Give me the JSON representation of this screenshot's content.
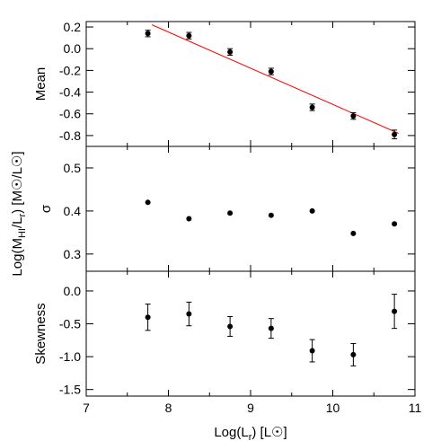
{
  "chart_data": [
    {
      "type": "scatter",
      "panel": "top",
      "ylabel": "Mean",
      "xlim": [
        7,
        11
      ],
      "ylim": [
        -0.9,
        0.25
      ],
      "yticks": [
        "0.2",
        "0.0",
        "-0.2",
        "-0.4",
        "-0.6",
        "-0.8"
      ],
      "ytick_values": [
        0.2,
        0.0,
        -0.2,
        -0.4,
        -0.6,
        -0.8
      ],
      "x": [
        7.75,
        8.25,
        8.75,
        9.25,
        9.75,
        10.25,
        10.75
      ],
      "y": [
        0.14,
        0.12,
        -0.03,
        -0.21,
        -0.54,
        -0.62,
        -0.79
      ],
      "yerr": [
        0.03,
        0.03,
        0.03,
        0.03,
        0.03,
        0.03,
        0.04
      ],
      "fit_line": {
        "x": [
          7.8,
          10.8
        ],
        "y": [
          0.22,
          -0.78
        ],
        "color": "#ff0000"
      },
      "grid": false
    },
    {
      "type": "scatter",
      "panel": "middle",
      "ylabel": "σ",
      "xlim": [
        7,
        11
      ],
      "ylim": [
        0.26,
        0.55
      ],
      "yticks": [
        "0.5",
        "0.4",
        "0.3"
      ],
      "ytick_values": [
        0.5,
        0.4,
        0.3
      ],
      "x": [
        7.75,
        8.25,
        8.75,
        9.25,
        9.75,
        10.25,
        10.75
      ],
      "y": [
        0.42,
        0.382,
        0.395,
        0.39,
        0.4,
        0.348,
        0.37
      ],
      "grid": false
    },
    {
      "type": "scatter",
      "panel": "bottom",
      "ylabel": "Skewness",
      "xlabel": "Log(L_r) [L☉]",
      "xlim": [
        7,
        11
      ],
      "ylim": [
        -1.6,
        0.3
      ],
      "yticks": [
        "0.0",
        "-0.5",
        "-1.0",
        "-1.5"
      ],
      "ytick_values": [
        0.0,
        -0.5,
        -1.0,
        -1.5
      ],
      "xticks": [
        "7",
        "8",
        "9",
        "10",
        "11"
      ],
      "xtick_values": [
        7,
        8,
        9,
        10,
        11
      ],
      "x": [
        7.75,
        8.25,
        8.75,
        9.25,
        9.75,
        10.25,
        10.75
      ],
      "y": [
        -0.4,
        -0.35,
        -0.54,
        -0.57,
        -0.91,
        -0.97,
        -0.31
      ],
      "yerr": [
        0.2,
        0.18,
        0.15,
        0.15,
        0.17,
        0.17,
        0.26
      ],
      "grid": false
    }
  ],
  "shared_ylabel": "Log(M_HI/L_r) [M☉/L☉]",
  "colors": {
    "points": "#000000",
    "fit": "#ff0000",
    "axes": "#000000"
  }
}
